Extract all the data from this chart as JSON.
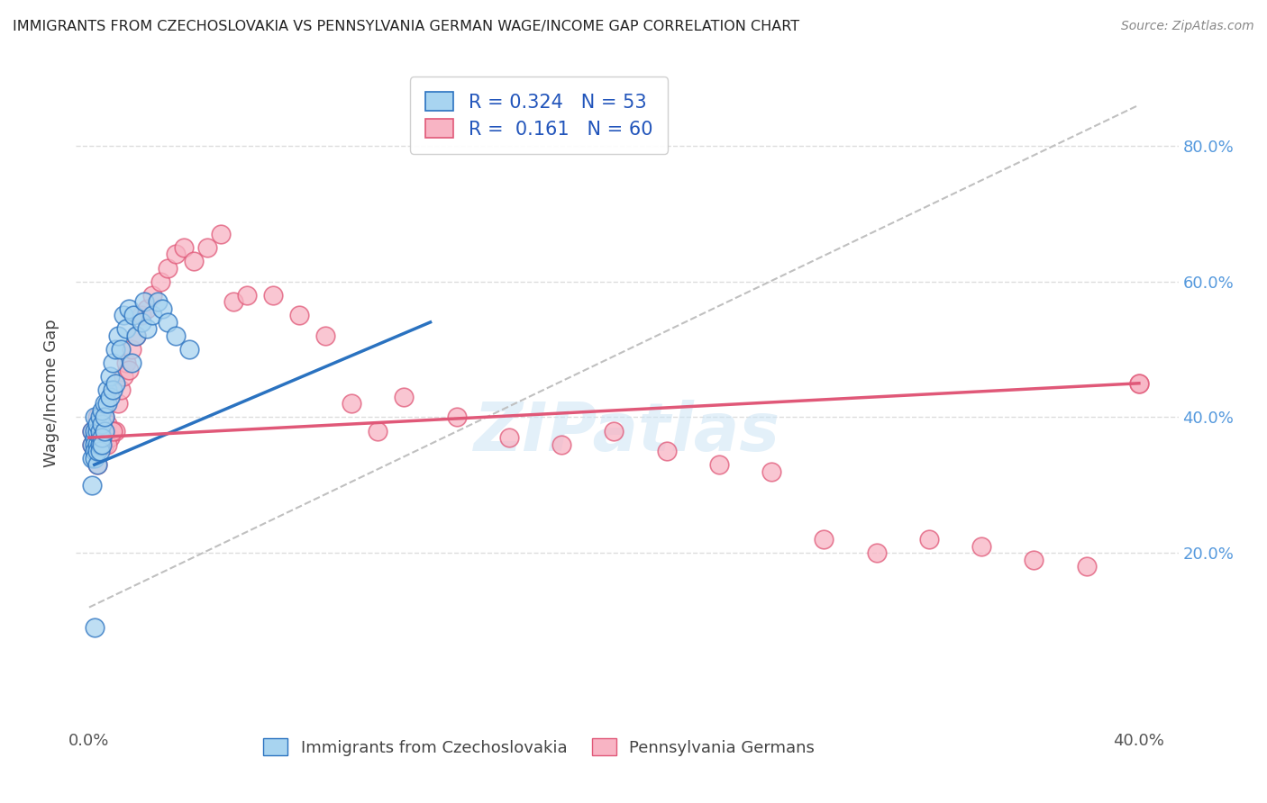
{
  "title": "IMMIGRANTS FROM CZECHOSLOVAKIA VS PENNSYLVANIA GERMAN WAGE/INCOME GAP CORRELATION CHART",
  "source": "Source: ZipAtlas.com",
  "ylabel": "Wage/Income Gap",
  "watermark": "ZIPatlas",
  "color_blue": "#a8d4f0",
  "color_pink": "#f8b4c4",
  "color_blue_line": "#2a72c0",
  "color_pink_line": "#e05878",
  "color_dashed": "#c0c0c0",
  "blue_R": 0.324,
  "blue_N": 53,
  "pink_R": 0.161,
  "pink_N": 60,
  "xlim": [
    -0.005,
    0.415
  ],
  "ylim": [
    -0.05,
    0.92
  ],
  "xtick_positions": [
    0.0,
    0.1,
    0.2,
    0.3,
    0.4
  ],
  "xtick_labels": [
    "0.0%",
    "",
    "",
    "",
    "40.0%"
  ],
  "ytick_positions": [
    0.2,
    0.4,
    0.6,
    0.8
  ],
  "ytick_labels": [
    "20.0%",
    "40.0%",
    "60.0%",
    "80.0%"
  ],
  "blue_scatter_x": [
    0.001,
    0.001,
    0.001,
    0.001,
    0.002,
    0.002,
    0.002,
    0.002,
    0.002,
    0.002,
    0.003,
    0.003,
    0.003,
    0.003,
    0.003,
    0.004,
    0.004,
    0.004,
    0.004,
    0.004,
    0.005,
    0.005,
    0.005,
    0.005,
    0.006,
    0.006,
    0.006,
    0.007,
    0.007,
    0.008,
    0.008,
    0.009,
    0.009,
    0.01,
    0.01,
    0.011,
    0.012,
    0.013,
    0.014,
    0.015,
    0.016,
    0.017,
    0.018,
    0.02,
    0.021,
    0.022,
    0.024,
    0.026,
    0.028,
    0.03,
    0.033,
    0.038,
    0.002
  ],
  "blue_scatter_y": [
    0.36,
    0.34,
    0.38,
    0.3,
    0.37,
    0.36,
    0.35,
    0.38,
    0.34,
    0.4,
    0.38,
    0.36,
    0.39,
    0.33,
    0.35,
    0.37,
    0.36,
    0.38,
    0.35,
    0.4,
    0.39,
    0.37,
    0.41,
    0.36,
    0.38,
    0.42,
    0.4,
    0.44,
    0.42,
    0.43,
    0.46,
    0.44,
    0.48,
    0.45,
    0.5,
    0.52,
    0.5,
    0.55,
    0.53,
    0.56,
    0.48,
    0.55,
    0.52,
    0.54,
    0.57,
    0.53,
    0.55,
    0.57,
    0.56,
    0.54,
    0.52,
    0.5,
    0.09
  ],
  "pink_scatter_x": [
    0.001,
    0.001,
    0.002,
    0.002,
    0.003,
    0.003,
    0.004,
    0.004,
    0.005,
    0.005,
    0.006,
    0.006,
    0.007,
    0.008,
    0.009,
    0.01,
    0.011,
    0.012,
    0.013,
    0.014,
    0.015,
    0.016,
    0.018,
    0.02,
    0.022,
    0.024,
    0.027,
    0.03,
    0.033,
    0.036,
    0.04,
    0.045,
    0.05,
    0.055,
    0.06,
    0.07,
    0.08,
    0.09,
    0.1,
    0.11,
    0.12,
    0.14,
    0.16,
    0.18,
    0.2,
    0.22,
    0.24,
    0.26,
    0.28,
    0.3,
    0.32,
    0.34,
    0.36,
    0.38,
    0.4,
    0.003,
    0.005,
    0.007,
    0.009,
    0.4
  ],
  "pink_scatter_y": [
    0.38,
    0.36,
    0.38,
    0.37,
    0.4,
    0.37,
    0.38,
    0.37,
    0.39,
    0.38,
    0.36,
    0.4,
    0.39,
    0.37,
    0.38,
    0.38,
    0.42,
    0.44,
    0.46,
    0.48,
    0.47,
    0.5,
    0.52,
    0.55,
    0.56,
    0.58,
    0.6,
    0.62,
    0.64,
    0.65,
    0.63,
    0.65,
    0.67,
    0.57,
    0.58,
    0.58,
    0.55,
    0.52,
    0.42,
    0.38,
    0.43,
    0.4,
    0.37,
    0.36,
    0.38,
    0.35,
    0.33,
    0.32,
    0.22,
    0.2,
    0.22,
    0.21,
    0.19,
    0.18,
    0.45,
    0.33,
    0.36,
    0.36,
    0.38,
    0.45
  ],
  "blue_line_x": [
    0.002,
    0.13
  ],
  "blue_line_y": [
    0.33,
    0.54
  ],
  "pink_line_x": [
    0.0,
    0.4
  ],
  "pink_line_y": [
    0.37,
    0.45
  ],
  "dash_line_x": [
    0.0,
    0.4
  ],
  "dash_line_y": [
    0.12,
    0.86
  ]
}
